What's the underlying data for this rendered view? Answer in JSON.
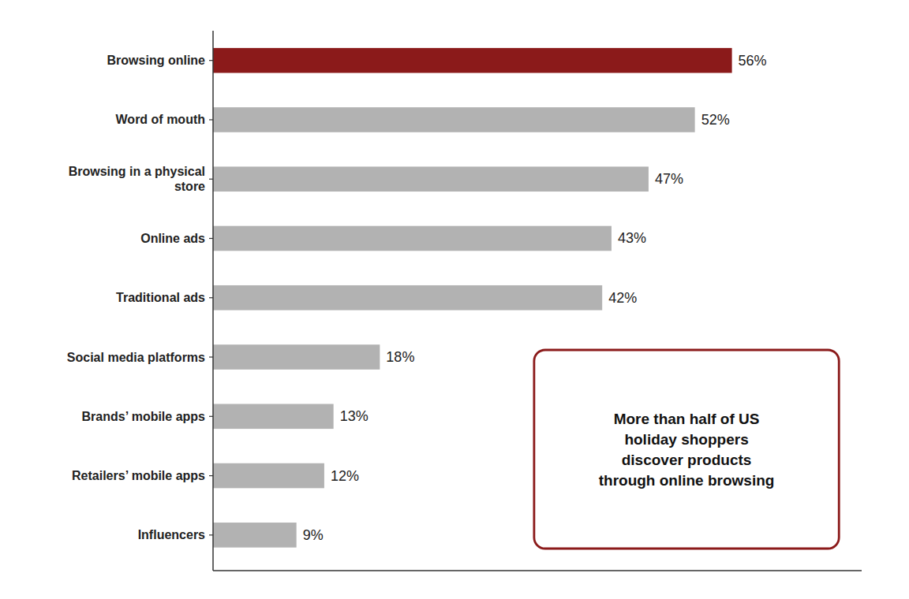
{
  "chart_data": {
    "type": "bar",
    "orientation": "horizontal",
    "categories": [
      "Influencers",
      "Retailers’ mobile apps",
      "Brands’ mobile apps",
      "Social media platforms",
      "Traditional ads",
      "Online ads",
      "Browsing in a physical\nstore",
      "Word of mouth",
      "Browsing online"
    ],
    "values": [
      9,
      12,
      13,
      18,
      42,
      43,
      47,
      52,
      56
    ],
    "value_labels": [
      "9%",
      "12%",
      "13%",
      "18%",
      "42%",
      "43%",
      "47%",
      "52%",
      "56%"
    ],
    "data_labels": true,
    "colors": [
      "#b2b2b2",
      "#b2b2b2",
      "#b2b2b2",
      "#b2b2b2",
      "#b2b2b2",
      "#b2b2b2",
      "#b2b2b2",
      "#b2b2b2",
      "#8b1a1a"
    ],
    "xlim": [
      0,
      70
    ],
    "tick_labels": "y",
    "grid": false,
    "annotations": [
      {
        "text": "More than half of US\nholiday shoppers\ndiscover products\nthrough online browsing",
        "color": "#8b1a1a"
      }
    ]
  }
}
